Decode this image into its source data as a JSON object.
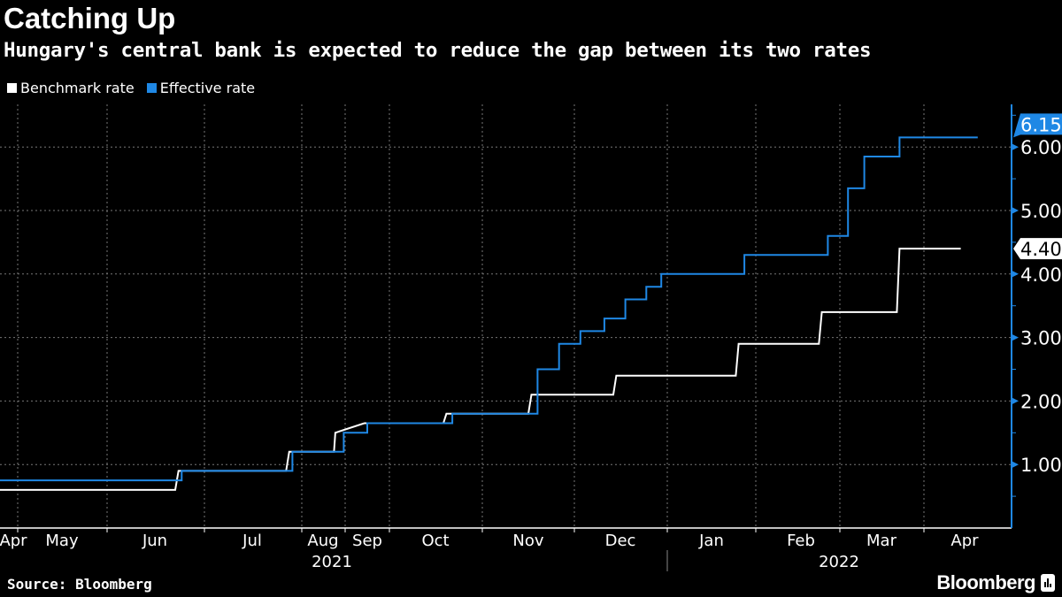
{
  "header": {
    "title": "Catching Up",
    "subtitle": "Hungary's central bank is expected to reduce the gap between its two rates"
  },
  "footer": {
    "source": "Source: Bloomberg",
    "logo": "Bloomberg"
  },
  "colors": {
    "benchmark": "#ffffff",
    "effective": "#1f88e5",
    "background": "#000000"
  },
  "chart_data": {
    "type": "line",
    "title": "Catching Up",
    "subtitle": "Hungary's central bank is expected to reduce the gap between its two rates",
    "legend_position": "top-left",
    "grid": true,
    "y_axis_side": "right",
    "ylim": [
      0,
      6.6
    ],
    "y_ticks": [
      1,
      2,
      3,
      4,
      5,
      6
    ],
    "y_tick_labels": [
      "1.00",
      "2.00",
      "3.00",
      "4.00",
      "5.00",
      "6.00"
    ],
    "x_month_labels": [
      "Apr",
      "May",
      "Jun",
      "Jul",
      "Aug",
      "Sep",
      "Oct",
      "Nov",
      "Dec",
      "Jan",
      "Feb",
      "Mar",
      "Apr"
    ],
    "x_year_labels": [
      "2021",
      "2022"
    ],
    "series": [
      {
        "name": "Benchmark rate",
        "color": "#ffffff",
        "last_value_label": "4.40",
        "points": [
          [
            "2021-04-23",
            0.6
          ],
          [
            "2021-06-22",
            0.6
          ],
          [
            "2021-06-23",
            0.9
          ],
          [
            "2021-07-27",
            0.9
          ],
          [
            "2021-07-28",
            1.2
          ],
          [
            "2021-08-24",
            1.2
          ],
          [
            "2021-08-25",
            1.5
          ],
          [
            "2021-09-14",
            1.65
          ],
          [
            "2021-10-19",
            1.65
          ],
          [
            "2021-10-20",
            1.8
          ],
          [
            "2021-11-16",
            1.8
          ],
          [
            "2021-11-17",
            2.1
          ],
          [
            "2021-12-14",
            2.1
          ],
          [
            "2021-12-15",
            2.4
          ],
          [
            "2022-01-25",
            2.4
          ],
          [
            "2022-01-26",
            2.9
          ],
          [
            "2022-02-22",
            2.9
          ],
          [
            "2022-02-23",
            3.4
          ],
          [
            "2022-03-22",
            3.4
          ],
          [
            "2022-03-23",
            4.4
          ],
          [
            "2022-04-14",
            4.4
          ]
        ]
      },
      {
        "name": "Effective rate",
        "color": "#1f88e5",
        "last_value_label": "6.15",
        "points": [
          [
            "2021-04-23",
            0.75
          ],
          [
            "2021-06-24",
            0.75
          ],
          [
            "2021-06-24",
            0.9
          ],
          [
            "2021-07-29",
            0.9
          ],
          [
            "2021-07-29",
            1.2
          ],
          [
            "2021-08-31",
            1.2
          ],
          [
            "2021-08-31",
            1.5
          ],
          [
            "2021-09-16",
            1.5
          ],
          [
            "2021-09-16",
            1.65
          ],
          [
            "2021-10-22",
            1.65
          ],
          [
            "2021-10-22",
            1.8
          ],
          [
            "2021-11-19",
            1.8
          ],
          [
            "2021-11-19",
            2.5
          ],
          [
            "2021-11-26",
            2.5
          ],
          [
            "2021-11-26",
            2.9
          ],
          [
            "2021-12-03",
            2.9
          ],
          [
            "2021-12-03",
            3.1
          ],
          [
            "2021-12-11",
            3.1
          ],
          [
            "2021-12-11",
            3.3
          ],
          [
            "2021-12-18",
            3.3
          ],
          [
            "2021-12-18",
            3.6
          ],
          [
            "2021-12-25",
            3.6
          ],
          [
            "2021-12-25",
            3.8
          ],
          [
            "2021-12-30",
            3.8
          ],
          [
            "2021-12-30",
            4.0
          ],
          [
            "2022-01-28",
            4.0
          ],
          [
            "2022-01-28",
            4.3
          ],
          [
            "2022-02-25",
            4.3
          ],
          [
            "2022-02-25",
            4.6
          ],
          [
            "2022-03-04",
            4.6
          ],
          [
            "2022-03-04",
            5.35
          ],
          [
            "2022-03-10",
            5.35
          ],
          [
            "2022-03-10",
            5.85
          ],
          [
            "2022-03-23",
            5.85
          ],
          [
            "2022-03-23",
            6.15
          ],
          [
            "2022-04-20",
            6.15
          ]
        ]
      }
    ]
  }
}
